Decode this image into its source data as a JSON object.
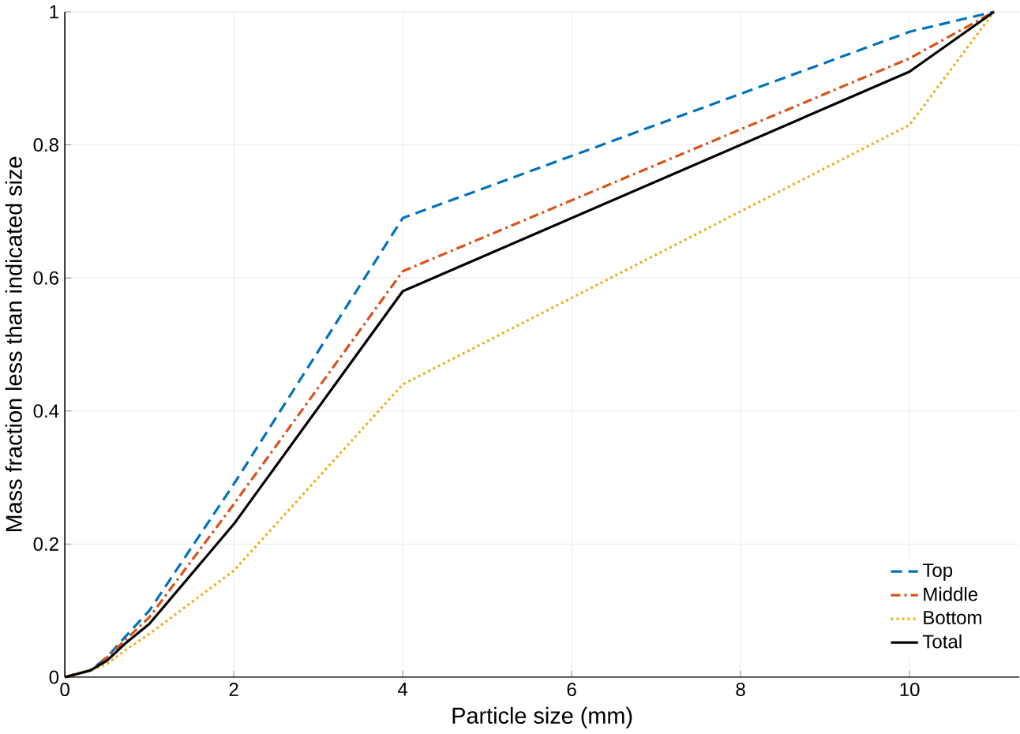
{
  "chart_data": {
    "type": "line",
    "xlabel": "Particle size (mm)",
    "ylabel": "Mass fraction less than indicated size",
    "x": [
      0,
      0.3,
      0.5,
      0.71,
      1,
      2,
      4,
      10,
      11
    ],
    "series": [
      {
        "name": "Top",
        "color": "#0072bd",
        "line_style": "dashed",
        "values": [
          0,
          0.01,
          0.03,
          0.06,
          0.1,
          0.29,
          0.69,
          0.97,
          1
        ]
      },
      {
        "name": "Middle",
        "color": "#d95319",
        "line_style": "dashdot",
        "values": [
          0,
          0.01,
          0.03,
          0.055,
          0.09,
          0.26,
          0.61,
          0.93,
          1
        ]
      },
      {
        "name": "Bottom",
        "color": "#edb120",
        "line_style": "dotted",
        "values": [
          0,
          0.01,
          0.02,
          0.04,
          0.065,
          0.16,
          0.44,
          0.83,
          1
        ]
      },
      {
        "name": "Total",
        "color": "#000000",
        "line_style": "solid",
        "values": [
          0,
          0.01,
          0.025,
          0.05,
          0.08,
          0.23,
          0.58,
          0.91,
          1
        ]
      }
    ],
    "xlim": [
      0,
      11.3
    ],
    "ylim": [
      0,
      1
    ],
    "xticks": [
      0,
      2,
      4,
      6,
      8,
      10
    ],
    "yticks": [
      0,
      0.2,
      0.4,
      0.6,
      0.8,
      1
    ],
    "grid": true,
    "legend": "bottom right"
  }
}
